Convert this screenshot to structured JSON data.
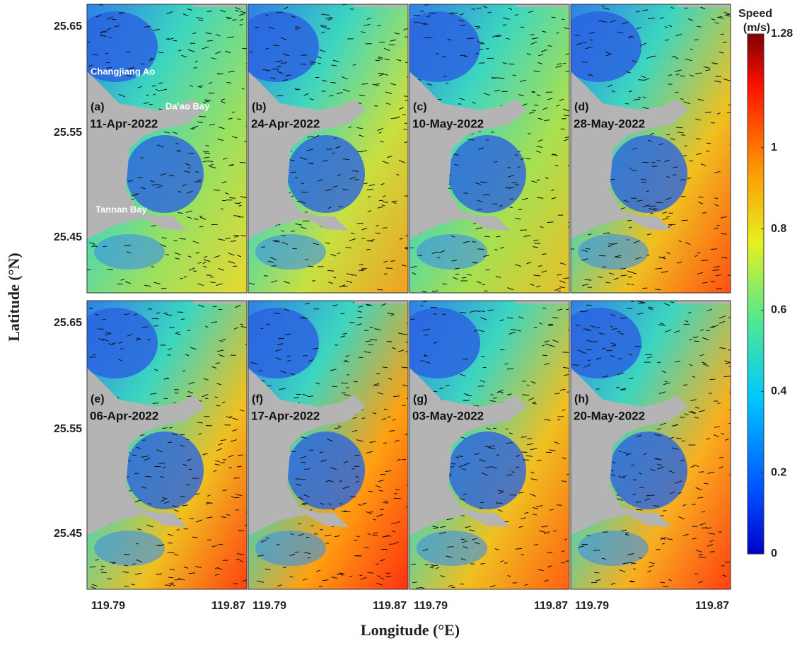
{
  "figure": {
    "y_axis_label": "Latitude (°N)",
    "x_axis_label": "Longitude (°E)",
    "yticks": [
      25.65,
      25.55,
      25.45
    ],
    "xticks": [
      119.79,
      119.87
    ],
    "panels": [
      {
        "label": "(a)",
        "date": "11-Apr-2022"
      },
      {
        "label": "(b)",
        "date": "24-Apr-2022"
      },
      {
        "label": "(c)",
        "date": "10-May-2022"
      },
      {
        "label": "(d)",
        "date": "28-May-2022"
      },
      {
        "label": "(e)",
        "date": "06-Apr-2022"
      },
      {
        "label": "(f)",
        "date": "17-Apr-2022"
      },
      {
        "label": "(g)",
        "date": "03-May-2022"
      },
      {
        "label": "(h)",
        "date": "20-May-2022"
      }
    ],
    "place_names": [
      "Changjiang Ao",
      "Da'ao Bay",
      "Tannan Bay"
    ],
    "colorbar": {
      "title": "Speed",
      "unit": "(m/s)",
      "lim": [
        0,
        1.28
      ],
      "ticks": [
        0,
        0.2,
        0.4,
        0.6,
        0.8,
        1,
        1.28
      ]
    }
  }
}
